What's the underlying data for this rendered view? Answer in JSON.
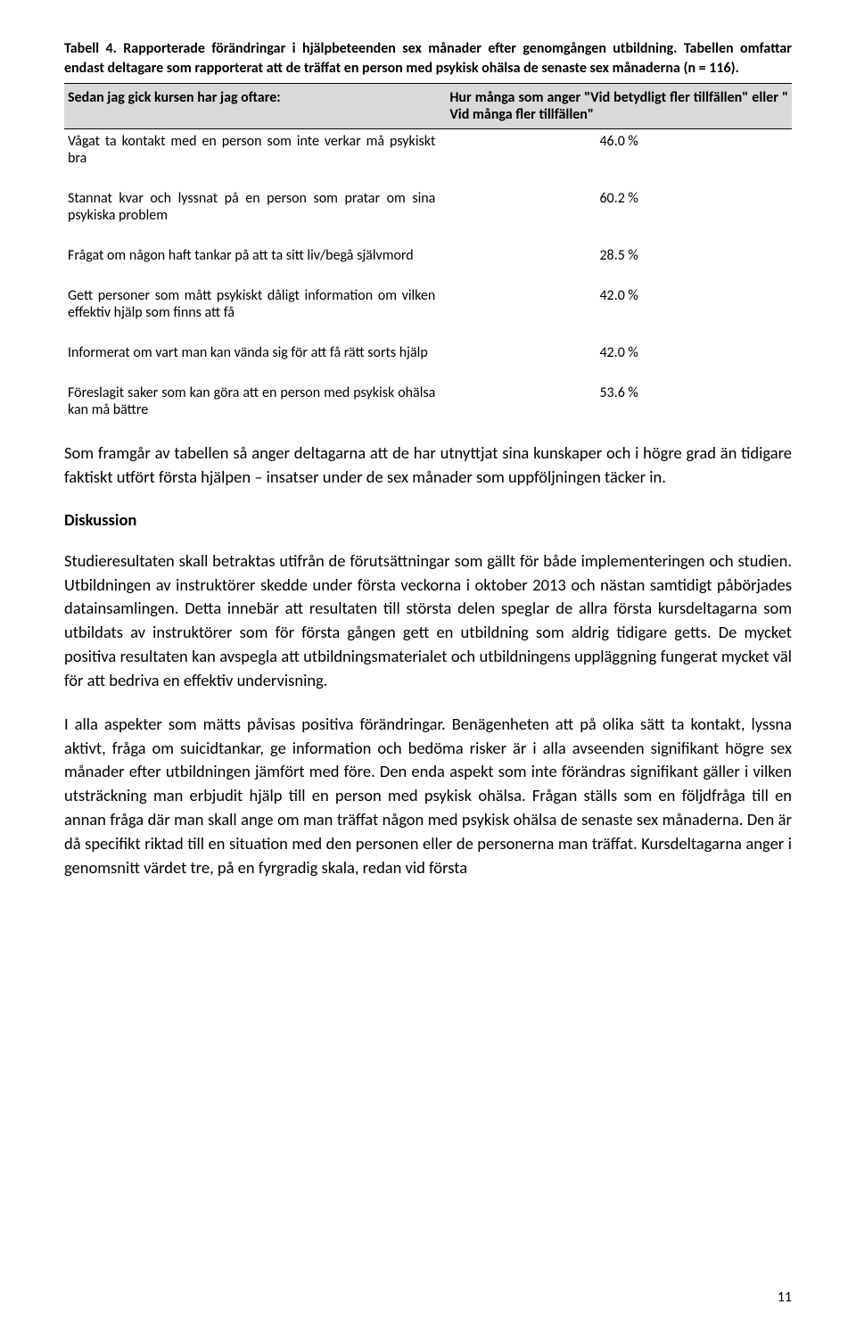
{
  "caption": "Tabell 4. Rapporterade förändringar i hjälpbeteenden sex månader efter genomgången utbildning. Tabellen omfattar endast deltagare som rapporterat att de träffat en person med psykisk ohälsa de senaste sex månaderna (n = 116).",
  "table": {
    "header_left": "Sedan jag gick kursen har jag oftare:",
    "header_right": "Hur många som anger \"Vid betydligt fler tillfällen\" eller \" Vid många fler tillfällen\"",
    "rows": [
      {
        "label": "Vågat ta kontakt med en person som inte verkar må psykiskt bra",
        "value": "46.0 %"
      },
      {
        "label": "Stannat kvar och lyssnat på en person som pratar om sina psykiska problem",
        "value": "60.2 %"
      },
      {
        "label": "Frågat om någon haft tankar på att ta sitt liv/begå självmord",
        "value": "28.5 %"
      },
      {
        "label": "Gett personer som mått psykiskt dåligt information om vilken effektiv hjälp som finns att få",
        "value": "42.0 %"
      },
      {
        "label": "Informerat om vart man kan vända sig för att få rätt sorts hjälp",
        "value": "42.0 %"
      },
      {
        "label": "Föreslagit saker som kan göra att en person med psykisk ohälsa kan må bättre",
        "value": "53.6 %"
      }
    ]
  },
  "paragraphs": {
    "p1": "Som framgår av tabellen så anger deltagarna att de har utnyttjat sina kunskaper och i högre grad än tidigare faktiskt utfört första hjälpen – insatser under de sex månader som uppföljningen täcker in.",
    "heading": "Diskussion",
    "p2": "Studieresultaten skall betraktas utifrån de förutsättningar som gällt för både implementeringen och studien. Utbildningen av instruktörer skedde under första veckorna i oktober 2013 och nästan samtidigt påbörjades datainsamlingen. Detta innebär att resultaten till största delen speglar de allra första kursdeltagarna som utbildats av instruktörer som för första gången gett en utbildning som aldrig tidigare getts. De mycket positiva resultaten kan avspegla att utbildningsmaterialet och utbildningens uppläggning fungerat mycket väl för att bedriva en effektiv undervisning.",
    "p3": "I alla aspekter som mätts påvisas positiva förändringar. Benägenheten att på olika sätt ta kontakt, lyssna aktivt, fråga om suicidtankar, ge information och bedöma risker är i alla avseenden signifikant högre sex månader efter utbildningen jämfört med före. Den enda aspekt som inte förändras signifikant gäller i vilken utsträckning man erbjudit hjälp till en person med psykisk ohälsa. Frågan ställs som en följdfråga till en annan fråga där man skall ange om man träffat någon med psykisk ohälsa de senaste sex månaderna. Den är då specifikt riktad till en situation med den personen eller de personerna man träffat. Kursdeltagarna anger i genomsnitt värdet tre, på en fyrgradig skala, redan vid första"
  },
  "page_number": "11"
}
